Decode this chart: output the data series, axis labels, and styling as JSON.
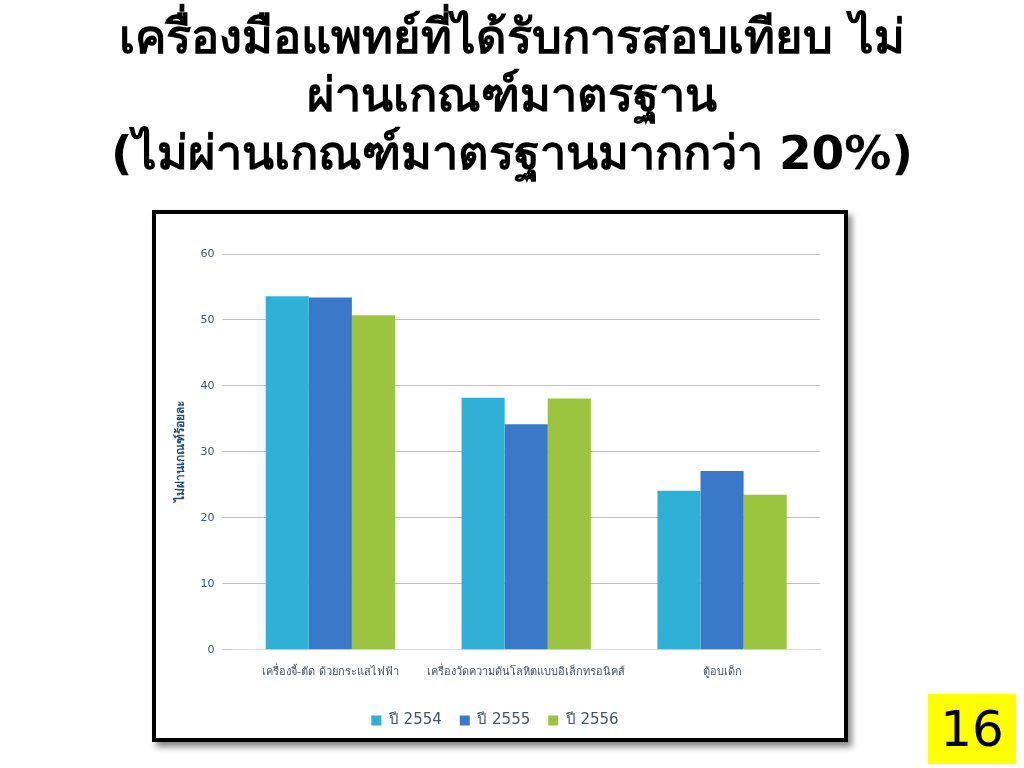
{
  "chart_data": {
    "type": "bar",
    "title": "เครื่องมือแพทย์ที่ได้รับการสอบเทียบ ไม่ผ่านเกณฑ์มาตรฐาน",
    "subtitle": "(ไม่ผ่านเกณฑ์มาตรฐานมากกว่า 20%)",
    "ylabel": "ไม่ผ่านเกณฑ์ร้อยละ",
    "categories": [
      "เครื่องจี้-ตัด ด้วยกระแสไฟฟ้า",
      "เครื่องวัดความดันโลหิตแบบอิเล็กทรอนิคส์",
      "ตู้อบเด็ก"
    ],
    "series": [
      {
        "name": "ปี 2554",
        "color": "#2fb0d6",
        "values": [
          53.6,
          38.2,
          24.1
        ]
      },
      {
        "name": "ปี 2555",
        "color": "#3a78c9",
        "values": [
          53.4,
          34.2,
          27.1
        ]
      },
      {
        "name": "ปี 2556",
        "color": "#9bc43f",
        "values": [
          50.7,
          38.1,
          23.5
        ]
      }
    ],
    "ylim": [
      0,
      60
    ],
    "yticks": [
      0,
      10,
      20,
      30,
      40,
      50,
      60
    ],
    "grid": "y",
    "legend": "bottom",
    "annotations": [
      "16"
    ]
  }
}
